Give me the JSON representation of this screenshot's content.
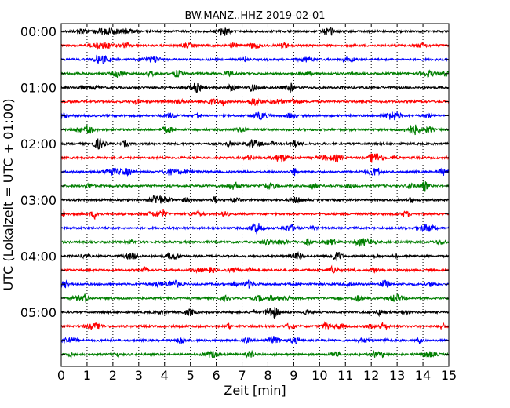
{
  "chart_data": {
    "type": "line",
    "chart_kind": "dayplot (seismogram helicorder)",
    "title": "BW.MANZ..HHZ 2019-02-01",
    "xlabel": "Zeit  [min]",
    "ylabel": "UTC (Lokalzeit = UTC + 01:00)",
    "xlim": [
      0,
      15
    ],
    "x_ticks": [
      "0",
      "1",
      "2",
      "3",
      "4",
      "5",
      "6",
      "7",
      "8",
      "9",
      "10",
      "11",
      "12",
      "13",
      "14",
      "15"
    ],
    "y_ticks": [
      "00:00",
      "01:00",
      "02:00",
      "03:00",
      "04:00",
      "05:00"
    ],
    "grid": {
      "x": true,
      "y": false,
      "style": "dotted"
    },
    "trace_count": 24,
    "trace_interval_minutes": 15,
    "trace_colors": [
      "#000000",
      "#ff0000",
      "#0000ff",
      "#007f00"
    ],
    "legend": "none"
  }
}
